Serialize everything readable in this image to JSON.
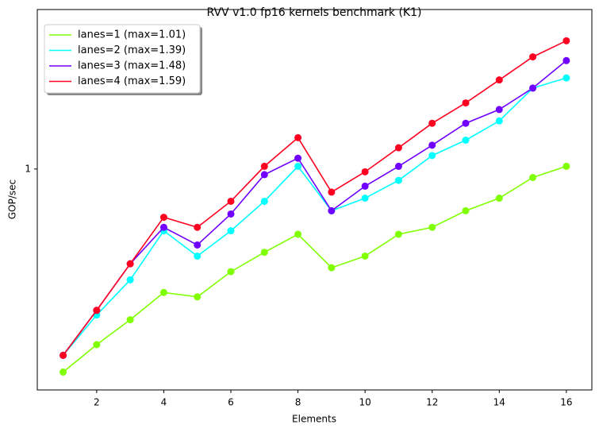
{
  "chart_data": {
    "type": "line",
    "title": "RVV v1.0 fp16 kernels benchmark (K1)",
    "x_label": "Elements",
    "y_label": "GOP/sec",
    "x": [
      1,
      2,
      3,
      4,
      5,
      6,
      7,
      8,
      9,
      10,
      11,
      12,
      13,
      14,
      15,
      16
    ],
    "series": [
      {
        "name": "lanes=1 (max=1.01)",
        "color": "#80ff00",
        "values": [
          0.48,
          0.53,
          0.58,
          0.64,
          0.63,
          0.69,
          0.74,
          0.79,
          0.7,
          0.73,
          0.79,
          0.81,
          0.86,
          0.9,
          0.97,
          1.01
        ]
      },
      {
        "name": "lanes=2 (max=1.39)",
        "color": "#00ffff",
        "values": [
          0.51,
          0.59,
          0.67,
          0.8,
          0.73,
          0.8,
          0.89,
          1.01,
          0.86,
          0.9,
          0.96,
          1.05,
          1.11,
          1.19,
          1.34,
          1.39
        ]
      },
      {
        "name": "lanes=3 (max=1.48)",
        "color": "#7000ff",
        "values": [
          0.51,
          0.6,
          0.71,
          0.81,
          0.76,
          0.85,
          0.98,
          1.04,
          0.86,
          0.94,
          1.01,
          1.09,
          1.18,
          1.24,
          1.34,
          1.48
        ]
      },
      {
        "name": "lanes=4 (max=1.59)",
        "color": "#ff0020",
        "values": [
          0.51,
          0.6,
          0.71,
          0.84,
          0.81,
          0.89,
          1.01,
          1.12,
          0.92,
          0.99,
          1.08,
          1.18,
          1.27,
          1.38,
          1.5,
          1.59
        ]
      }
    ],
    "xlim": [
      0.23,
      16.76
    ],
    "xticks": [
      2,
      4,
      6,
      8,
      10,
      12,
      14,
      16
    ],
    "ylim": [
      0.45,
      1.78
    ],
    "yticks": [
      1
    ],
    "log_y": true,
    "legend": "upper-left"
  }
}
